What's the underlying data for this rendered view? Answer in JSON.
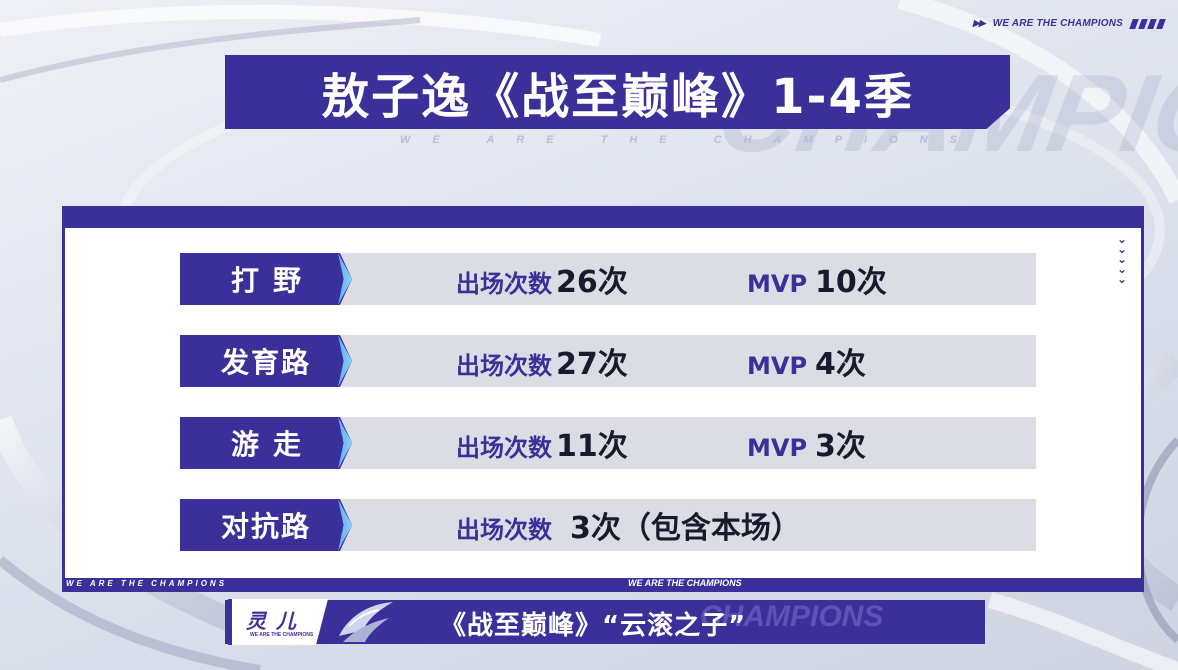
{
  "header": {
    "brand": "WE ARE THE CHAMPIONS",
    "title": "敖子逸《战至巅峰》1-4季",
    "subtitle": "WE ARE THE CHAMPIONS"
  },
  "stats": {
    "appear_label": "出场次数",
    "mvp_label": "MVP",
    "rows": [
      {
        "position": "打野",
        "appearances": "26次",
        "mvp": "10次"
      },
      {
        "position": "发育路",
        "appearances": "27次",
        "mvp": "4次"
      },
      {
        "position": "游走",
        "appearances": "11次",
        "mvp": "3次"
      },
      {
        "position": "对抗路",
        "appearances": "3次（包含本场）"
      }
    ]
  },
  "footer": {
    "tagline": "WE ARE THE CHAMPIONS",
    "mid_tagline": "WE ARE THE CHAMPIONS",
    "caster_name": "灵儿",
    "caster_sub": "WE ARE THE CHAMPIONS",
    "lower_text": "《战至巅峰》“云滚之子”"
  },
  "colors": {
    "accent": "#3b2f9a",
    "highlight": "#5ea8ff",
    "row_bg": "#dcdde4"
  }
}
